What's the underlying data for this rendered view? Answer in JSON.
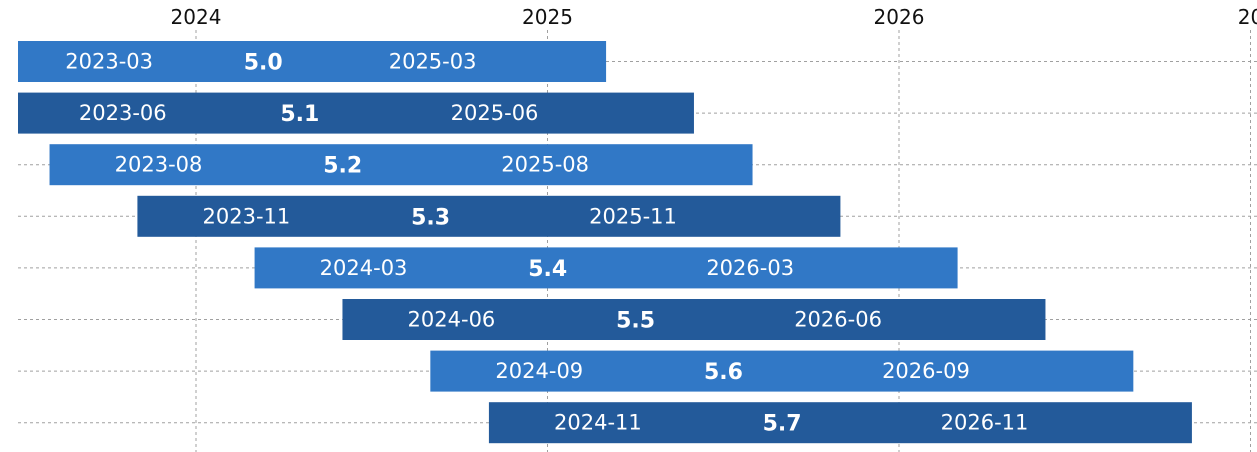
{
  "chart_data": {
    "type": "bar",
    "orientation": "horizontal-range",
    "title": "",
    "x_ticks": [
      "2024",
      "2025",
      "2026",
      "20"
    ],
    "x_axis_position": "top",
    "grid": true,
    "colors": {
      "light": "#3178c6",
      "dark": "#235a9a",
      "grid": "#a0a0a0"
    },
    "series": [
      {
        "version": "5.0",
        "start": "2023-03",
        "end": "2025-03",
        "shade": "light"
      },
      {
        "version": "5.1",
        "start": "2023-06",
        "end": "2025-06",
        "shade": "dark"
      },
      {
        "version": "5.2",
        "start": "2023-08",
        "end": "2025-08",
        "shade": "light"
      },
      {
        "version": "5.3",
        "start": "2023-11",
        "end": "2025-11",
        "shade": "dark"
      },
      {
        "version": "5.4",
        "start": "2024-03",
        "end": "2026-03",
        "shade": "light"
      },
      {
        "version": "5.5",
        "start": "2024-06",
        "end": "2026-06",
        "shade": "dark"
      },
      {
        "version": "5.6",
        "start": "2024-09",
        "end": "2026-09",
        "shade": "light"
      },
      {
        "version": "5.7",
        "start": "2024-11",
        "end": "2026-11",
        "shade": "dark"
      }
    ]
  }
}
